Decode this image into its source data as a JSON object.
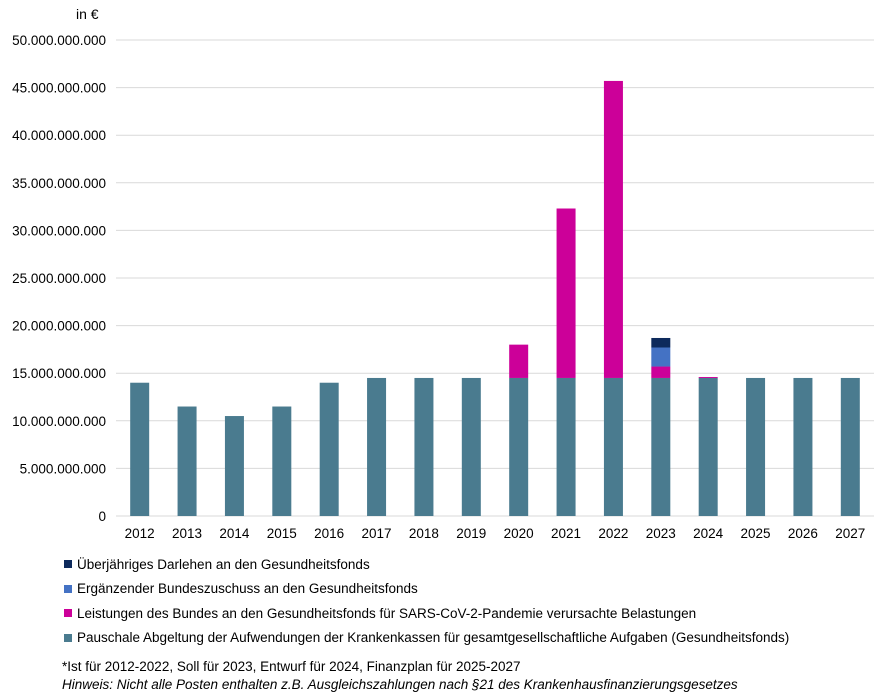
{
  "chart_data": {
    "type": "bar",
    "stacked": true,
    "unit_label": "in €",
    "title": "",
    "xlabel": "",
    "ylabel": "",
    "ylim": [
      0,
      50000000000
    ],
    "y_ticks": [
      0,
      5000000000,
      10000000000,
      15000000000,
      20000000000,
      25000000000,
      30000000000,
      35000000000,
      40000000000,
      45000000000,
      50000000000
    ],
    "y_tick_labels": [
      "0",
      "5.000.000.000",
      "10.000.000.000",
      "15.000.000.000",
      "20.000.000.000",
      "25.000.000.000",
      "30.000.000.000",
      "35.000.000.000",
      "40.000.000.000",
      "45.000.000.000",
      "50.000.000.000"
    ],
    "grid": true,
    "categories": [
      "2012",
      "2013",
      "2014",
      "2015",
      "2016",
      "2017",
      "2018",
      "2019",
      "2020",
      "2021",
      "2022",
      "2023",
      "2024",
      "2025",
      "2026",
      "2027"
    ],
    "series": [
      {
        "name": "Pauschale Abgeltung der Aufwendungen der Krankenkassen für gesamtgesellschaftliche Aufgaben (Gesundheitsfonds)",
        "color": "#4a7b8f",
        "values": [
          14000000000,
          11500000000,
          10500000000,
          11500000000,
          14000000000,
          14500000000,
          14500000000,
          14500000000,
          14500000000,
          14500000000,
          14500000000,
          14500000000,
          14500000000,
          14500000000,
          14500000000,
          14500000000
        ]
      },
      {
        "name": "Leistungen des Bundes an den Gesundheitsfonds für SARS-CoV-2-Pandemie verursachte Belastungen",
        "color": "#cc0099",
        "values": [
          0,
          0,
          0,
          0,
          0,
          0,
          0,
          0,
          3500000000,
          17800000000,
          31200000000,
          1200000000,
          100000000,
          0,
          0,
          0
        ]
      },
      {
        "name": "Ergänzender Bundeszuschuss an den Gesundheitsfonds",
        "color": "#4472c4",
        "values": [
          0,
          0,
          0,
          0,
          0,
          0,
          0,
          0,
          0,
          0,
          0,
          2000000000,
          0,
          0,
          0,
          0
        ]
      },
      {
        "name": "Überjähriges Darlehen an den Gesundheitsfonds",
        "color": "#0d2a5c",
        "values": [
          0,
          0,
          0,
          0,
          0,
          0,
          0,
          0,
          0,
          0,
          0,
          1000000000,
          0,
          0,
          0,
          0
        ]
      }
    ],
    "legend_position": "bottom"
  },
  "legend_order": [
    3,
    2,
    1,
    0
  ],
  "notes": {
    "line1": "*Ist für 2012-2022, Soll für 2023, Entwurf für 2024, Finanzplan für 2025-2027",
    "line2": "Hinweis: Nicht alle Posten enthalten z.B. Ausgleichszahlungen nach §21 des Krankenhausfinanzierungsgesetzes"
  }
}
